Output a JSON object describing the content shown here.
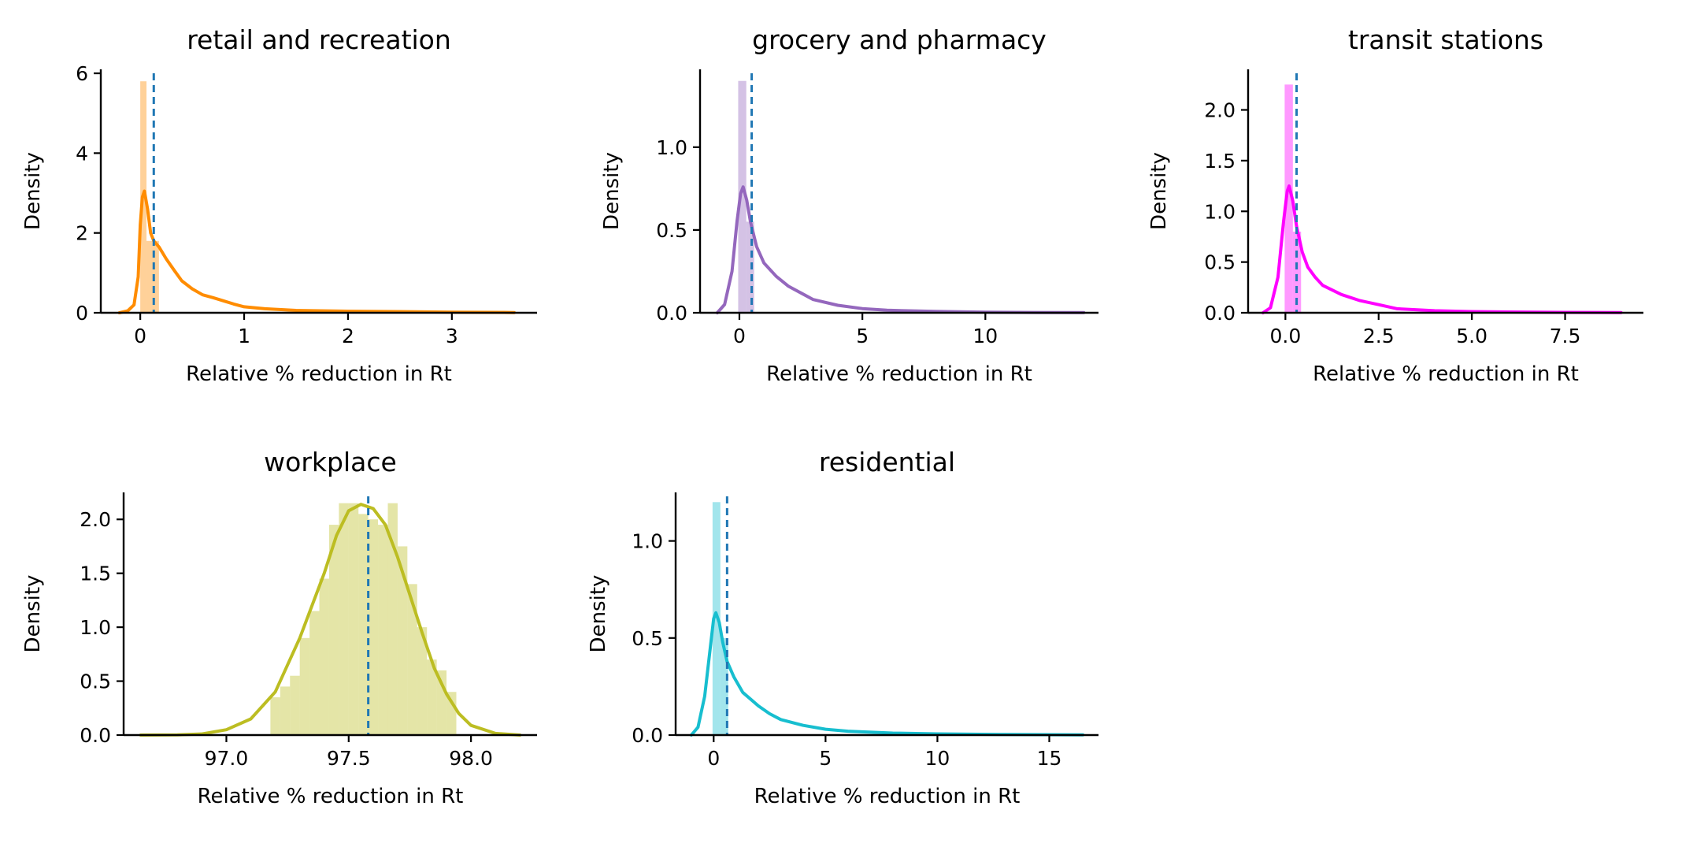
{
  "chart_data": [
    {
      "type": "histogram",
      "title": "retail and recreation",
      "xlabel": "Relative % reduction in Rt",
      "ylabel": "Density",
      "xlim": [
        -0.38,
        3.82
      ],
      "ylim": [
        0,
        6.1
      ],
      "xticks": [
        0,
        1,
        2,
        3
      ],
      "xtick_labels": [
        "0",
        "1",
        "2",
        "3"
      ],
      "yticks": [
        0,
        2,
        4,
        6
      ],
      "ytick_labels": [
        "0",
        "2",
        "4",
        "6"
      ],
      "color": "#ff8c00",
      "mean_line": 0.13,
      "histogram": {
        "bins": [
          [
            0.0,
            0.06,
            5.8
          ],
          [
            0.06,
            0.18,
            1.8
          ]
        ],
        "kde": [
          [
            -0.2,
            0
          ],
          [
            -0.12,
            0.05
          ],
          [
            -0.06,
            0.2
          ],
          [
            -0.02,
            0.9
          ],
          [
            0.0,
            2.2
          ],
          [
            0.02,
            2.9
          ],
          [
            0.04,
            3.05
          ],
          [
            0.07,
            2.6
          ],
          [
            0.1,
            2.0
          ],
          [
            0.13,
            1.8
          ],
          [
            0.18,
            1.65
          ],
          [
            0.25,
            1.35
          ],
          [
            0.33,
            1.05
          ],
          [
            0.4,
            0.8
          ],
          [
            0.5,
            0.6
          ],
          [
            0.6,
            0.45
          ],
          [
            0.7,
            0.38
          ],
          [
            0.8,
            0.3
          ],
          [
            0.9,
            0.22
          ],
          [
            1.0,
            0.15
          ],
          [
            1.2,
            0.1
          ],
          [
            1.5,
            0.06
          ],
          [
            2.0,
            0.04
          ],
          [
            2.5,
            0.03
          ],
          [
            3.0,
            0.015
          ],
          [
            3.5,
            0.01
          ],
          [
            3.6,
            0.005
          ]
        ]
      }
    },
    {
      "type": "histogram",
      "title": "grocery and pharmacy",
      "xlabel": "Relative % reduction in Rt",
      "ylabel": "Density",
      "xlim": [
        -1.6,
        14.6
      ],
      "ylim": [
        0,
        1.47
      ],
      "xticks": [
        0,
        5,
        10
      ],
      "xtick_labels": [
        "0",
        "5",
        "10"
      ],
      "yticks": [
        0,
        0.5,
        1.0
      ],
      "ytick_labels": [
        "0.0",
        "0.5",
        "1.0"
      ],
      "color": "#9467bd",
      "mean_line": 0.5,
      "histogram": {
        "bins": [
          [
            -0.05,
            0.28,
            1.4
          ],
          [
            0.28,
            0.6,
            0.55
          ]
        ],
        "kde": [
          [
            -0.9,
            0
          ],
          [
            -0.6,
            0.05
          ],
          [
            -0.3,
            0.25
          ],
          [
            -0.1,
            0.55
          ],
          [
            0.05,
            0.72
          ],
          [
            0.15,
            0.76
          ],
          [
            0.3,
            0.68
          ],
          [
            0.45,
            0.55
          ],
          [
            0.7,
            0.4
          ],
          [
            1.0,
            0.3
          ],
          [
            1.5,
            0.22
          ],
          [
            2.0,
            0.16
          ],
          [
            2.5,
            0.12
          ],
          [
            3.0,
            0.08
          ],
          [
            4.0,
            0.045
          ],
          [
            5.0,
            0.025
          ],
          [
            6.0,
            0.015
          ],
          [
            8.0,
            0.008
          ],
          [
            10.0,
            0.004
          ],
          [
            12.0,
            0.002
          ],
          [
            14.0,
            0.001
          ]
        ]
      }
    },
    {
      "type": "histogram",
      "title": "transit stations",
      "xlabel": "Relative % reduction in Rt",
      "ylabel": "Density",
      "xlim": [
        -1.0,
        9.6
      ],
      "ylim": [
        0,
        2.4
      ],
      "xticks": [
        0,
        2.5,
        5,
        7.5
      ],
      "xtick_labels": [
        "0.0",
        "2.5",
        "5.0",
        "7.5"
      ],
      "yticks": [
        0,
        0.5,
        1.0,
        1.5,
        2.0
      ],
      "ytick_labels": [
        "0.0",
        "0.5",
        "1.0",
        "1.5",
        "2.0"
      ],
      "color": "#ff00ff",
      "mean_line": 0.3,
      "histogram": {
        "bins": [
          [
            -0.02,
            0.2,
            2.25
          ],
          [
            0.2,
            0.42,
            0.8
          ]
        ],
        "kde": [
          [
            -0.6,
            0
          ],
          [
            -0.4,
            0.05
          ],
          [
            -0.2,
            0.35
          ],
          [
            -0.05,
            0.9
          ],
          [
            0.05,
            1.2
          ],
          [
            0.1,
            1.25
          ],
          [
            0.2,
            1.1
          ],
          [
            0.3,
            0.85
          ],
          [
            0.45,
            0.6
          ],
          [
            0.6,
            0.45
          ],
          [
            0.8,
            0.35
          ],
          [
            1.0,
            0.27
          ],
          [
            1.5,
            0.18
          ],
          [
            2.0,
            0.12
          ],
          [
            2.5,
            0.08
          ],
          [
            3.0,
            0.04
          ],
          [
            4.0,
            0.02
          ],
          [
            5.0,
            0.012
          ],
          [
            6.0,
            0.008
          ],
          [
            7.5,
            0.004
          ],
          [
            9.0,
            0.002
          ]
        ]
      }
    },
    {
      "type": "histogram",
      "title": "workplace",
      "xlabel": "Relative % reduction in Rt",
      "ylabel": "Density",
      "xlim": [
        96.58,
        98.27
      ],
      "ylim": [
        0,
        2.25
      ],
      "xticks": [
        97.0,
        97.5,
        98.0
      ],
      "xtick_labels": [
        "97.0",
        "97.5",
        "98.0"
      ],
      "yticks": [
        0,
        0.5,
        1.0,
        1.5,
        2.0
      ],
      "ytick_labels": [
        "0.0",
        "0.5",
        "1.0",
        "1.5",
        "2.0"
      ],
      "color": "#bcbd22",
      "mean_line": 97.58,
      "histogram": {
        "bins": [
          [
            97.18,
            97.22,
            0.35
          ],
          [
            97.22,
            97.26,
            0.45
          ],
          [
            97.26,
            97.3,
            0.55
          ],
          [
            97.3,
            97.34,
            0.9
          ],
          [
            97.34,
            97.38,
            1.15
          ],
          [
            97.38,
            97.42,
            1.45
          ],
          [
            97.42,
            97.46,
            1.95
          ],
          [
            97.46,
            97.5,
            2.15
          ],
          [
            97.5,
            97.54,
            2.15
          ],
          [
            97.54,
            97.58,
            2.05
          ],
          [
            97.58,
            97.62,
            2.0
          ],
          [
            97.62,
            97.66,
            1.95
          ],
          [
            97.66,
            97.7,
            2.15
          ],
          [
            97.7,
            97.74,
            1.75
          ],
          [
            97.74,
            97.78,
            1.4
          ],
          [
            97.78,
            97.82,
            1.0
          ],
          [
            97.82,
            97.86,
            0.7
          ],
          [
            97.86,
            97.9,
            0.6
          ],
          [
            97.9,
            97.94,
            0.4
          ]
        ],
        "kde": [
          [
            96.65,
            0
          ],
          [
            96.8,
            0.002
          ],
          [
            96.9,
            0.01
          ],
          [
            97.0,
            0.05
          ],
          [
            97.1,
            0.15
          ],
          [
            97.2,
            0.4
          ],
          [
            97.3,
            0.9
          ],
          [
            97.4,
            1.5
          ],
          [
            97.45,
            1.85
          ],
          [
            97.5,
            2.08
          ],
          [
            97.55,
            2.14
          ],
          [
            97.6,
            2.1
          ],
          [
            97.65,
            1.95
          ],
          [
            97.7,
            1.65
          ],
          [
            97.75,
            1.3
          ],
          [
            97.8,
            0.95
          ],
          [
            97.85,
            0.62
          ],
          [
            97.9,
            0.38
          ],
          [
            97.95,
            0.2
          ],
          [
            98.0,
            0.09
          ],
          [
            98.1,
            0.015
          ],
          [
            98.2,
            0
          ]
        ]
      }
    },
    {
      "type": "histogram",
      "title": "residential",
      "xlabel": "Relative % reduction in Rt",
      "ylabel": "Density",
      "xlim": [
        -1.7,
        17.2
      ],
      "ylim": [
        0,
        1.25
      ],
      "xticks": [
        0,
        5,
        10,
        15
      ],
      "xtick_labels": [
        "0",
        "5",
        "10",
        "15"
      ],
      "yticks": [
        0,
        0.5,
        1.0
      ],
      "ytick_labels": [
        "0.0",
        "0.5",
        "1.0"
      ],
      "color": "#17becf",
      "mean_line": 0.6,
      "histogram": {
        "bins": [
          [
            -0.05,
            0.3,
            1.2
          ],
          [
            0.3,
            0.65,
            0.5
          ]
        ],
        "kde": [
          [
            -1.0,
            0
          ],
          [
            -0.7,
            0.04
          ],
          [
            -0.4,
            0.2
          ],
          [
            -0.15,
            0.45
          ],
          [
            0.0,
            0.6
          ],
          [
            0.1,
            0.63
          ],
          [
            0.25,
            0.58
          ],
          [
            0.4,
            0.48
          ],
          [
            0.6,
            0.38
          ],
          [
            0.9,
            0.3
          ],
          [
            1.3,
            0.22
          ],
          [
            2.0,
            0.15
          ],
          [
            2.5,
            0.11
          ],
          [
            3.0,
            0.08
          ],
          [
            4.0,
            0.05
          ],
          [
            5.0,
            0.03
          ],
          [
            6.0,
            0.02
          ],
          [
            8.0,
            0.01
          ],
          [
            10.0,
            0.006
          ],
          [
            13.0,
            0.003
          ],
          [
            16.5,
            0.001
          ]
        ]
      }
    }
  ]
}
